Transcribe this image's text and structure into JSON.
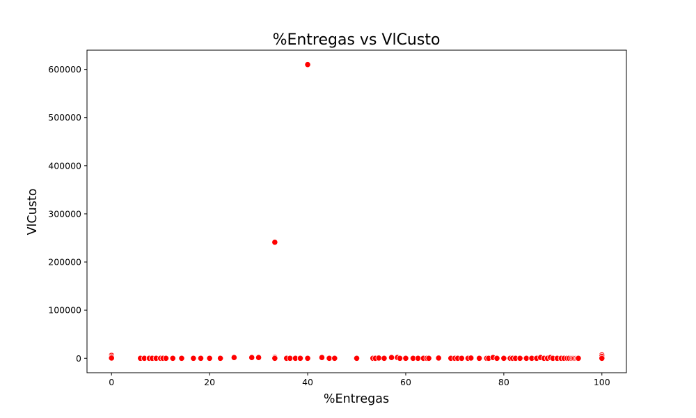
{
  "chart_data": {
    "type": "scatter",
    "title": "%Entregas vs VlCusto",
    "xlabel": "%Entregas",
    "ylabel": "VlCusto",
    "xlim": [
      -5,
      105
    ],
    "ylim": [
      -30000,
      640000
    ],
    "xticks": [
      0,
      20,
      40,
      60,
      80,
      100
    ],
    "yticks": [
      0,
      100000,
      200000,
      300000,
      400000,
      500000,
      600000
    ],
    "grid": false,
    "marker_color": "#ff0000",
    "points": [
      {
        "x": 0,
        "y": 6000
      },
      {
        "x": 0,
        "y": 3000
      },
      {
        "x": 0,
        "y": 500
      },
      {
        "x": 5.9,
        "y": 0
      },
      {
        "x": 6.7,
        "y": 0
      },
      {
        "x": 7.7,
        "y": 0
      },
      {
        "x": 8.3,
        "y": 0
      },
      {
        "x": 9.1,
        "y": 0
      },
      {
        "x": 10,
        "y": 0
      },
      {
        "x": 10.5,
        "y": 0
      },
      {
        "x": 11.1,
        "y": 0
      },
      {
        "x": 12.5,
        "y": 0
      },
      {
        "x": 14.3,
        "y": 0
      },
      {
        "x": 16.7,
        "y": 0
      },
      {
        "x": 18.2,
        "y": 0
      },
      {
        "x": 20,
        "y": 0
      },
      {
        "x": 22.2,
        "y": 0
      },
      {
        "x": 25,
        "y": 1500
      },
      {
        "x": 28.6,
        "y": 1500
      },
      {
        "x": 30,
        "y": 1500
      },
      {
        "x": 33.3,
        "y": 241000
      },
      {
        "x": 33.3,
        "y": 2000
      },
      {
        "x": 33.3,
        "y": 0
      },
      {
        "x": 35.7,
        "y": 0
      },
      {
        "x": 36.4,
        "y": 0
      },
      {
        "x": 37.5,
        "y": 0
      },
      {
        "x": 38.5,
        "y": 0
      },
      {
        "x": 40,
        "y": 610000
      },
      {
        "x": 40,
        "y": 0
      },
      {
        "x": 42.9,
        "y": 1500
      },
      {
        "x": 44.4,
        "y": 0
      },
      {
        "x": 45.5,
        "y": 0
      },
      {
        "x": 50,
        "y": 0
      },
      {
        "x": 53.3,
        "y": 0
      },
      {
        "x": 53.8,
        "y": 0
      },
      {
        "x": 54.5,
        "y": 500
      },
      {
        "x": 55.6,
        "y": 0
      },
      {
        "x": 57.1,
        "y": 1500
      },
      {
        "x": 58.3,
        "y": 1500
      },
      {
        "x": 58.8,
        "y": 0
      },
      {
        "x": 60,
        "y": 0
      },
      {
        "x": 61.5,
        "y": 0
      },
      {
        "x": 62.5,
        "y": 0
      },
      {
        "x": 63.6,
        "y": 0
      },
      {
        "x": 64.3,
        "y": 0
      },
      {
        "x": 64.7,
        "y": 0
      },
      {
        "x": 66.7,
        "y": 500
      },
      {
        "x": 69.2,
        "y": 0
      },
      {
        "x": 70,
        "y": 0
      },
      {
        "x": 70.6,
        "y": 0
      },
      {
        "x": 71.4,
        "y": 0
      },
      {
        "x": 72.7,
        "y": 0
      },
      {
        "x": 73.3,
        "y": 500
      },
      {
        "x": 75,
        "y": 0
      },
      {
        "x": 76.5,
        "y": 0
      },
      {
        "x": 76.9,
        "y": 0
      },
      {
        "x": 77.8,
        "y": 1500
      },
      {
        "x": 78.6,
        "y": 0
      },
      {
        "x": 80,
        "y": 0
      },
      {
        "x": 81.3,
        "y": 0
      },
      {
        "x": 81.8,
        "y": 0
      },
      {
        "x": 82.4,
        "y": 0
      },
      {
        "x": 83.3,
        "y": 0
      },
      {
        "x": 84.6,
        "y": 0
      },
      {
        "x": 85.7,
        "y": 0
      },
      {
        "x": 86.7,
        "y": 0
      },
      {
        "x": 87.5,
        "y": 1500
      },
      {
        "x": 88.2,
        "y": 0
      },
      {
        "x": 88.9,
        "y": 0
      },
      {
        "x": 89.5,
        "y": 1500
      },
      {
        "x": 90,
        "y": 0
      },
      {
        "x": 90.9,
        "y": 0
      },
      {
        "x": 91.7,
        "y": 0
      },
      {
        "x": 92.3,
        "y": 0
      },
      {
        "x": 92.9,
        "y": 0
      },
      {
        "x": 93.3,
        "y": 0
      },
      {
        "x": 93.8,
        "y": 0
      },
      {
        "x": 94.1,
        "y": 0
      },
      {
        "x": 94.4,
        "y": 0
      },
      {
        "x": 94.7,
        "y": 0
      },
      {
        "x": 95,
        "y": 0
      },
      {
        "x": 95.2,
        "y": 0
      },
      {
        "x": 100,
        "y": 7000
      },
      {
        "x": 100,
        "y": 4000
      },
      {
        "x": 100,
        "y": 0
      }
    ]
  }
}
